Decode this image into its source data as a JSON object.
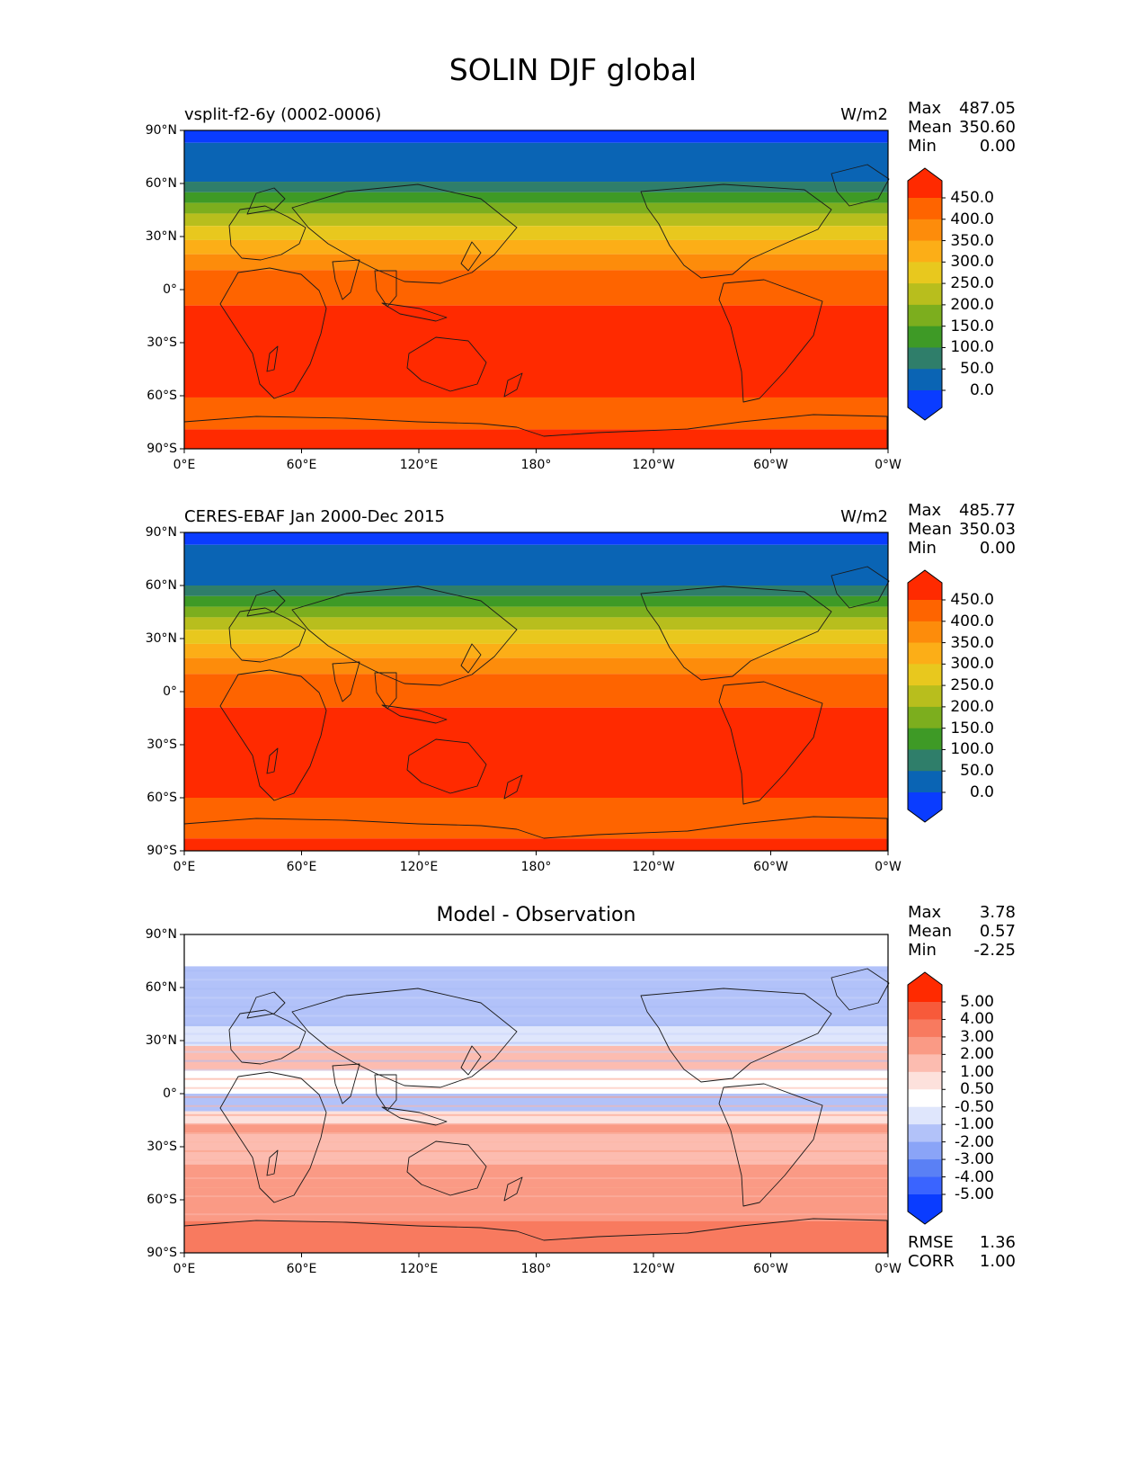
{
  "figure_title": "SOLIN DJF global",
  "chart_data": [
    {
      "type": "heatmap",
      "left_title": "vsplit-f2-6y (0002-0006)",
      "right_title": "W/m2",
      "stats": [
        {
          "label": "Max",
          "value": "487.05"
        },
        {
          "label": "Mean",
          "value": "350.60"
        },
        {
          "label": "Min",
          "value": "0.00"
        }
      ],
      "x_ticks": [
        "0°E",
        "60°E",
        "120°E",
        "180°",
        "120°W",
        "60°W",
        "0°W"
      ],
      "y_ticks": [
        "90°N",
        "60°N",
        "30°N",
        "0°",
        "30°S",
        "60°S",
        "90°S"
      ],
      "xlim": [
        0,
        360
      ],
      "ylim": [
        -90,
        90
      ],
      "colorbar_levels": [
        "0.0",
        "50.0",
        "100.0",
        "150.0",
        "200.0",
        "250.0",
        "300.0",
        "350.0",
        "400.0",
        "450.0"
      ],
      "colorbar_colors": [
        "#0a3cff",
        "#0a64b4",
        "#2f7e6a",
        "#3e9a26",
        "#7cae1e",
        "#b8be1d",
        "#e8c81e",
        "#fcae17",
        "#fd8c0b",
        "#fe6400",
        "#ff2a00"
      ],
      "bands": [
        {
          "lat_top": 90,
          "lat_bottom": 83,
          "level": 0
        },
        {
          "lat_top": 83,
          "lat_bottom": 61,
          "level": 1
        },
        {
          "lat_top": 61,
          "lat_bottom": 55,
          "level": 2
        },
        {
          "lat_top": 55,
          "lat_bottom": 49,
          "level": 3
        },
        {
          "lat_top": 49,
          "lat_bottom": 43,
          "level": 4
        },
        {
          "lat_top": 43,
          "lat_bottom": 36,
          "level": 5
        },
        {
          "lat_top": 36,
          "lat_bottom": 28,
          "level": 6
        },
        {
          "lat_top": 28,
          "lat_bottom": 20,
          "level": 7
        },
        {
          "lat_top": 20,
          "lat_bottom": 11,
          "level": 8
        },
        {
          "lat_top": 11,
          "lat_bottom": -9,
          "level": 9
        },
        {
          "lat_top": -9,
          "lat_bottom": -61,
          "level": 10
        },
        {
          "lat_top": -61,
          "lat_bottom": -79,
          "level": 9
        },
        {
          "lat_top": -79,
          "lat_bottom": -90,
          "level": 10
        }
      ]
    },
    {
      "type": "heatmap",
      "left_title": "CERES-EBAF Jan 2000-Dec 2015",
      "right_title": "W/m2",
      "stats": [
        {
          "label": "Max",
          "value": "485.77"
        },
        {
          "label": "Mean",
          "value": "350.03"
        },
        {
          "label": "Min",
          "value": "0.00"
        }
      ],
      "x_ticks": [
        "0°E",
        "60°E",
        "120°E",
        "180°",
        "120°W",
        "60°W",
        "0°W"
      ],
      "y_ticks": [
        "90°N",
        "60°N",
        "30°N",
        "0°",
        "30°S",
        "60°S",
        "90°S"
      ],
      "xlim": [
        0,
        360
      ],
      "ylim": [
        -90,
        90
      ],
      "colorbar_levels": [
        "0.0",
        "50.0",
        "100.0",
        "150.0",
        "200.0",
        "250.0",
        "300.0",
        "350.0",
        "400.0",
        "450.0"
      ],
      "colorbar_colors": [
        "#0a3cff",
        "#0a64b4",
        "#2f7e6a",
        "#3e9a26",
        "#7cae1e",
        "#b8be1d",
        "#e8c81e",
        "#fcae17",
        "#fd8c0b",
        "#fe6400",
        "#ff2a00"
      ],
      "bands": [
        {
          "lat_top": 90,
          "lat_bottom": 83,
          "level": 0
        },
        {
          "lat_top": 83,
          "lat_bottom": 60,
          "level": 1
        },
        {
          "lat_top": 60,
          "lat_bottom": 54,
          "level": 2
        },
        {
          "lat_top": 54,
          "lat_bottom": 48,
          "level": 3
        },
        {
          "lat_top": 48,
          "lat_bottom": 42,
          "level": 4
        },
        {
          "lat_top": 42,
          "lat_bottom": 35,
          "level": 5
        },
        {
          "lat_top": 35,
          "lat_bottom": 27,
          "level": 6
        },
        {
          "lat_top": 27,
          "lat_bottom": 19,
          "level": 7
        },
        {
          "lat_top": 19,
          "lat_bottom": 10,
          "level": 8
        },
        {
          "lat_top": 10,
          "lat_bottom": -9,
          "level": 9
        },
        {
          "lat_top": -9,
          "lat_bottom": -60,
          "level": 10
        },
        {
          "lat_top": -60,
          "lat_bottom": -83,
          "level": 9
        },
        {
          "lat_top": -83,
          "lat_bottom": -90,
          "level": 10
        }
      ]
    },
    {
      "type": "heatmap",
      "center_title": "Model - Observation",
      "stats": [
        {
          "label": "Max",
          "value": "3.78"
        },
        {
          "label": "Mean",
          "value": "0.57"
        },
        {
          "label": "Min",
          "value": "-2.25"
        }
      ],
      "footer_stats": [
        {
          "label": "RMSE",
          "value": "1.36"
        },
        {
          "label": "CORR",
          "value": "1.00"
        }
      ],
      "x_ticks": [
        "0°E",
        "60°E",
        "120°E",
        "180°",
        "120°W",
        "60°W",
        "0°W"
      ],
      "y_ticks": [
        "90°N",
        "60°N",
        "30°N",
        "0°",
        "30°S",
        "60°S",
        "90°S"
      ],
      "xlim": [
        0,
        360
      ],
      "ylim": [
        -90,
        90
      ],
      "colorbar_levels": [
        "-5.00",
        "-4.00",
        "-3.00",
        "-2.00",
        "-1.00",
        "-0.50",
        "0.50",
        "1.00",
        "2.00",
        "3.00",
        "4.00",
        "5.00"
      ],
      "colorbar_colors": [
        "#0a3cff",
        "#3a64ff",
        "#5a80f5",
        "#8aa4f7",
        "#b2c2f9",
        "#dfe6fc",
        "#ffffff",
        "#fde1dc",
        "#fcbcb0",
        "#fa9a85",
        "#f87a5f",
        "#f75a3a",
        "#ff2a00"
      ],
      "bands": [
        {
          "lat_top": 90,
          "lat_bottom": 72,
          "level": 6
        },
        {
          "lat_top": 72,
          "lat_bottom": 38,
          "level": 4
        },
        {
          "lat_top": 38,
          "lat_bottom": 27,
          "level": 5
        },
        {
          "lat_top": 27,
          "lat_bottom": 13,
          "level": 8
        },
        {
          "lat_top": 13,
          "lat_bottom": 0,
          "level": 6
        },
        {
          "lat_top": 0,
          "lat_bottom": -10,
          "level": 4
        },
        {
          "lat_top": -10,
          "lat_bottom": -17,
          "level": 7
        },
        {
          "lat_top": -17,
          "lat_bottom": -22,
          "level": 9
        },
        {
          "lat_top": -22,
          "lat_bottom": -40,
          "level": 8
        },
        {
          "lat_top": -40,
          "lat_bottom": -53,
          "level": 9
        },
        {
          "lat_top": -53,
          "lat_bottom": -72,
          "level": 9
        },
        {
          "lat_top": -72,
          "lat_bottom": -90,
          "level": 10
        }
      ]
    }
  ]
}
